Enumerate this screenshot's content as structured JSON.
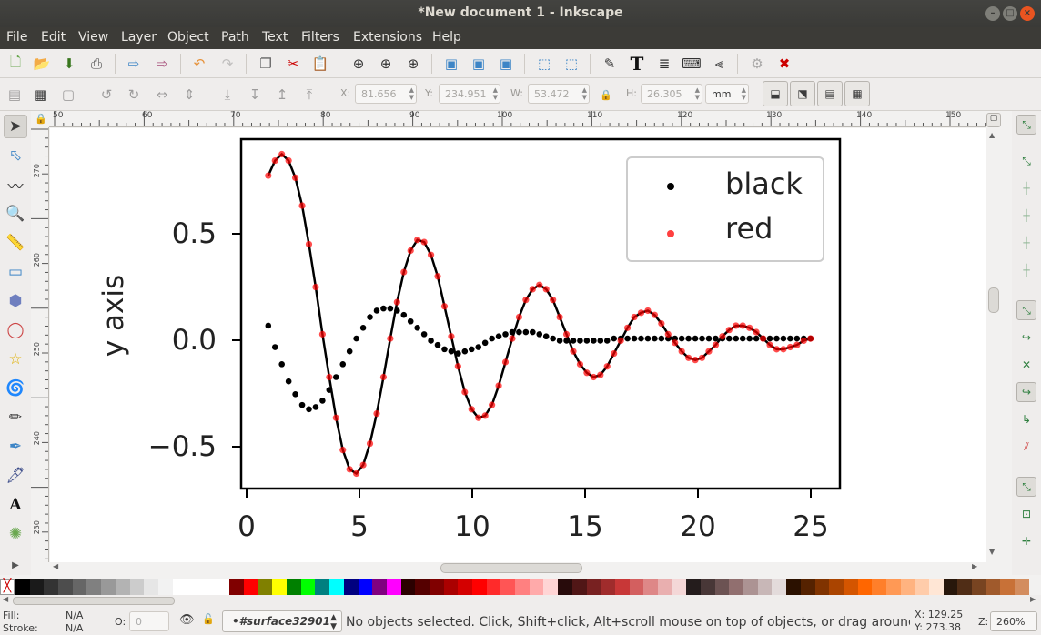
{
  "window": {
    "title": "*New document 1 - Inkscape"
  },
  "menu": [
    "File",
    "Edit",
    "View",
    "Layer",
    "Object",
    "Path",
    "Text",
    "Filters",
    "Extensions",
    "Help"
  ],
  "toolbar": {
    "x_label": "X:",
    "x_value": "81.656",
    "y_label": "Y:",
    "y_value": "234.951",
    "w_label": "W:",
    "w_value": "53.472",
    "h_label": "H:",
    "h_value": "26.305",
    "unit": "mm"
  },
  "ruler": {
    "h_ticks": [
      "50",
      "60",
      "70",
      "80",
      "90",
      "100",
      "110",
      "120",
      "130",
      "140",
      "150"
    ],
    "v_ticks": [
      "270",
      "260",
      "250",
      "240",
      "230"
    ]
  },
  "plot": {
    "ylabel": "y axis",
    "y_ticks": [
      "0.5",
      "0.0",
      "−0.5"
    ],
    "x_ticks": [
      "0",
      "5",
      "10",
      "15",
      "20",
      "25"
    ],
    "legend": [
      {
        "label": "black",
        "color": "#000000"
      },
      {
        "label": "red",
        "color": "#ff0000"
      }
    ]
  },
  "chart_data": {
    "type": "scatter",
    "xlim": [
      -0.2,
      26.3
    ],
    "ylim": [
      -0.7,
      0.93
    ],
    "legend_position": "top-right",
    "x_ticks": [
      0,
      5,
      10,
      15,
      20,
      25
    ],
    "y_ticks": [
      0.5,
      0.0,
      -0.5
    ],
    "ylabel": "y axis",
    "series": [
      {
        "name": "black",
        "color": "#000000",
        "points": [
          [
            1.0,
            0.06
          ],
          [
            1.3,
            -0.04
          ],
          [
            1.6,
            -0.12
          ],
          [
            1.9,
            -0.2
          ],
          [
            2.2,
            -0.26
          ],
          [
            2.5,
            -0.31
          ],
          [
            2.8,
            -0.33
          ],
          [
            3.1,
            -0.32
          ],
          [
            3.4,
            -0.29
          ],
          [
            3.7,
            -0.24
          ],
          [
            4.0,
            -0.18
          ],
          [
            4.3,
            -0.12
          ],
          [
            4.6,
            -0.06
          ],
          [
            4.9,
            0.0
          ],
          [
            5.2,
            0.05
          ],
          [
            5.5,
            0.1
          ],
          [
            5.8,
            0.13
          ],
          [
            6.1,
            0.14
          ],
          [
            6.4,
            0.14
          ],
          [
            6.7,
            0.13
          ],
          [
            7.0,
            0.11
          ],
          [
            7.3,
            0.08
          ],
          [
            7.6,
            0.05
          ],
          [
            7.9,
            0.02
          ],
          [
            8.2,
            -0.01
          ],
          [
            8.5,
            -0.03
          ],
          [
            8.8,
            -0.05
          ],
          [
            9.1,
            -0.06
          ],
          [
            9.4,
            -0.07
          ],
          [
            9.7,
            -0.06
          ],
          [
            10.0,
            -0.05
          ],
          [
            10.3,
            -0.04
          ],
          [
            10.6,
            -0.02
          ],
          [
            10.9,
            0.0
          ],
          [
            11.2,
            0.01
          ],
          [
            11.5,
            0.02
          ],
          [
            11.8,
            0.03
          ],
          [
            12.1,
            0.03
          ],
          [
            12.4,
            0.03
          ],
          [
            12.7,
            0.03
          ],
          [
            13.0,
            0.02
          ],
          [
            13.3,
            0.01
          ],
          [
            13.6,
            0.0
          ],
          [
            13.9,
            -0.01
          ],
          [
            14.2,
            -0.01
          ],
          [
            14.5,
            -0.01
          ],
          [
            14.8,
            -0.01
          ],
          [
            15.1,
            -0.01
          ],
          [
            15.4,
            -0.01
          ],
          [
            15.7,
            -0.01
          ],
          [
            16.0,
            -0.01
          ],
          [
            16.3,
            0.0
          ],
          [
            16.6,
            0.0
          ],
          [
            16.9,
            0.0
          ],
          [
            17.2,
            0.0
          ],
          [
            17.5,
            0.0
          ],
          [
            17.8,
            0.0
          ],
          [
            18.1,
            0.0
          ],
          [
            18.4,
            0.0
          ],
          [
            18.7,
            0.0
          ],
          [
            19.0,
            0.0
          ],
          [
            19.3,
            0.0
          ],
          [
            19.6,
            0.0
          ],
          [
            19.9,
            0.0
          ],
          [
            20.2,
            0.0
          ],
          [
            20.5,
            0.0
          ],
          [
            20.8,
            0.0
          ],
          [
            21.1,
            0.0
          ],
          [
            21.4,
            0.0
          ],
          [
            21.7,
            0.0
          ],
          [
            22.0,
            0.0
          ],
          [
            22.3,
            0.0
          ],
          [
            22.6,
            0.0
          ],
          [
            22.9,
            0.0
          ],
          [
            23.2,
            0.0
          ],
          [
            23.5,
            0.0
          ],
          [
            23.8,
            0.0
          ],
          [
            24.1,
            0.0
          ],
          [
            24.4,
            0.0
          ],
          [
            24.7,
            0.0
          ],
          [
            25.0,
            0.0
          ]
        ]
      },
      {
        "name": "red",
        "color": "#ff0000",
        "points": [
          [
            1.0,
            0.76
          ],
          [
            1.3,
            0.83
          ],
          [
            1.6,
            0.86
          ],
          [
            1.9,
            0.83
          ],
          [
            2.2,
            0.75
          ],
          [
            2.5,
            0.62
          ],
          [
            2.8,
            0.44
          ],
          [
            3.1,
            0.24
          ],
          [
            3.4,
            0.02
          ],
          [
            3.7,
            -0.18
          ],
          [
            4.0,
            -0.37
          ],
          [
            4.3,
            -0.52
          ],
          [
            4.6,
            -0.61
          ],
          [
            4.9,
            -0.63
          ],
          [
            5.2,
            -0.59
          ],
          [
            5.5,
            -0.49
          ],
          [
            5.8,
            -0.35
          ],
          [
            6.1,
            -0.18
          ],
          [
            6.4,
            0.0
          ],
          [
            6.7,
            0.17
          ],
          [
            7.0,
            0.31
          ],
          [
            7.3,
            0.41
          ],
          [
            7.6,
            0.46
          ],
          [
            7.9,
            0.45
          ],
          [
            8.2,
            0.39
          ],
          [
            8.5,
            0.29
          ],
          [
            8.8,
            0.15
          ],
          [
            9.1,
            0.01
          ],
          [
            9.4,
            -0.13
          ],
          [
            9.7,
            -0.25
          ],
          [
            10.0,
            -0.33
          ],
          [
            10.3,
            -0.37
          ],
          [
            10.6,
            -0.36
          ],
          [
            10.9,
            -0.31
          ],
          [
            11.2,
            -0.22
          ],
          [
            11.5,
            -0.11
          ],
          [
            11.8,
            0.0
          ],
          [
            12.1,
            0.1
          ],
          [
            12.4,
            0.18
          ],
          [
            12.7,
            0.23
          ],
          [
            13.0,
            0.25
          ],
          [
            13.3,
            0.23
          ],
          [
            13.6,
            0.18
          ],
          [
            13.9,
            0.1
          ],
          [
            14.2,
            0.02
          ],
          [
            14.5,
            -0.06
          ],
          [
            14.8,
            -0.12
          ],
          [
            15.1,
            -0.16
          ],
          [
            15.4,
            -0.18
          ],
          [
            15.7,
            -0.17
          ],
          [
            16.0,
            -0.13
          ],
          [
            16.3,
            -0.07
          ],
          [
            16.6,
            -0.01
          ],
          [
            16.9,
            0.05
          ],
          [
            17.2,
            0.1
          ],
          [
            17.5,
            0.12
          ],
          [
            17.8,
            0.13
          ],
          [
            18.1,
            0.11
          ],
          [
            18.4,
            0.07
          ],
          [
            18.7,
            0.02
          ],
          [
            19.0,
            -0.02
          ],
          [
            19.3,
            -0.06
          ],
          [
            19.6,
            -0.09
          ],
          [
            19.9,
            -0.1
          ],
          [
            20.2,
            -0.09
          ],
          [
            20.5,
            -0.06
          ],
          [
            20.8,
            -0.03
          ],
          [
            21.1,
            0.01
          ],
          [
            21.4,
            0.04
          ],
          [
            21.7,
            0.06
          ],
          [
            22.0,
            0.06
          ],
          [
            22.3,
            0.05
          ],
          [
            22.6,
            0.03
          ],
          [
            22.9,
            0.0
          ],
          [
            23.2,
            -0.03
          ],
          [
            23.5,
            -0.05
          ],
          [
            23.8,
            -0.05
          ],
          [
            24.1,
            -0.04
          ],
          [
            24.4,
            -0.03
          ],
          [
            24.7,
            -0.01
          ],
          [
            25.0,
            0.0
          ]
        ]
      }
    ]
  },
  "status": {
    "fill_label": "Fill:",
    "fill_value": "N/A",
    "stroke_label": "Stroke:",
    "stroke_value": "N/A",
    "opacity_label": "O:",
    "opacity_value": "0",
    "layer": "•#surface32901",
    "message": "No objects selected. Click, Shift+click, Alt+scroll mouse on top of objects, or drag around o…",
    "x_coord": "X:  129.25",
    "y_coord": "Y:  273.38",
    "zoom_label": "Z:",
    "zoom_value": "260%"
  },
  "palette": [
    "#000000",
    "#1a1a1a",
    "#333333",
    "#4d4d4d",
    "#666666",
    "#808080",
    "#999999",
    "#b3b3b3",
    "#cccccc",
    "#e6e6e6",
    "#f2f2f2",
    "#ffffff",
    "#ffffff",
    "#ffffff",
    "#ffffff",
    "#800000",
    "#ff0000",
    "#808000",
    "#ffff00",
    "#008000",
    "#00ff00",
    "#008080",
    "#00ffff",
    "#000080",
    "#0000ff",
    "#800080",
    "#ff00ff",
    "#2b0000",
    "#550000",
    "#800000",
    "#aa0000",
    "#d40000",
    "#ff0000",
    "#ff2a2a",
    "#ff5555",
    "#ff8080",
    "#ffaaaa",
    "#ffd5d5",
    "#280b0b",
    "#501616",
    "#782121",
    "#a02c2c",
    "#c83737",
    "#d35f5f",
    "#de8787",
    "#e9afaf",
    "#f4d7d7",
    "#241c1c",
    "#483737",
    "#6c5353",
    "#916f6f",
    "#ac9393",
    "#c8b7b7",
    "#e3dbdb",
    "#2b1100",
    "#552200",
    "#803300",
    "#aa4400",
    "#d45500",
    "#ff6600",
    "#ff7f2a",
    "#ff9955",
    "#ffb380",
    "#ffccaa",
    "#ffe6d5",
    "#28170b",
    "#502d16",
    "#784421",
    "#a05a2c",
    "#c87137",
    "#d38d5f"
  ]
}
